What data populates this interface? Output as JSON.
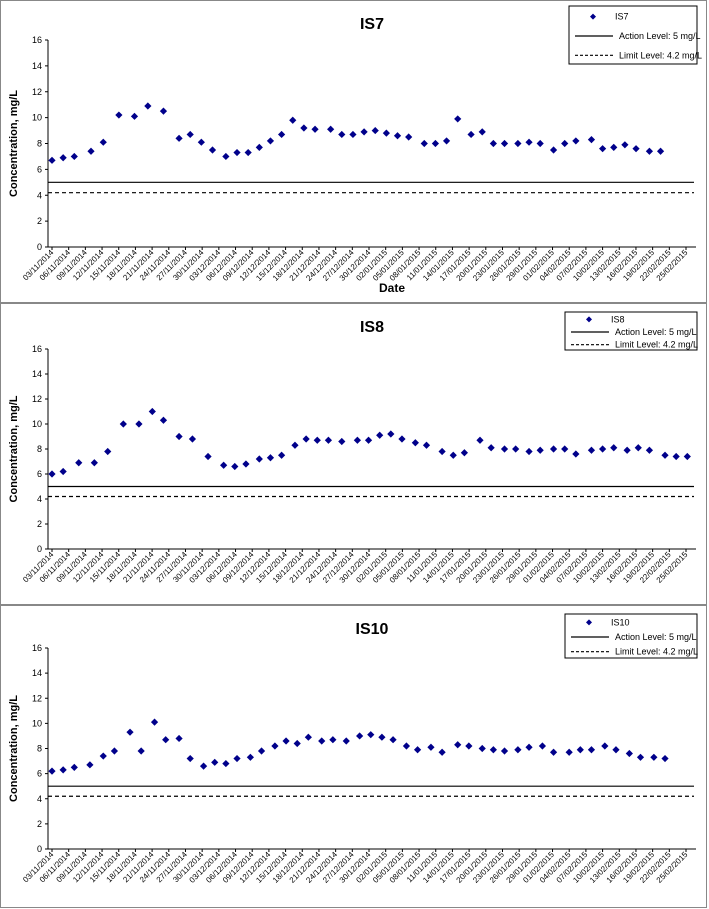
{
  "chart_data": [
    {
      "type": "scatter",
      "title": "IS7",
      "xlabel": "Date",
      "ylabel": "Concentration, mg/L",
      "ylim": [
        0,
        16
      ],
      "yticks": [
        0,
        2,
        4,
        6,
        8,
        10,
        12,
        14,
        16
      ],
      "grid": false,
      "legend_position": "top-right",
      "x_tick_labels": [
        "03/11/2014",
        "06/11/2014",
        "09/11/2014",
        "12/11/2014",
        "15/11/2014",
        "18/11/2014",
        "21/11/2014",
        "24/11/2014",
        "27/11/2014",
        "30/11/2014",
        "03/12/2014",
        "06/12/2014",
        "09/12/2014",
        "12/12/2014",
        "15/12/2014",
        "18/12/2014",
        "21/12/2014",
        "24/12/2014",
        "27/12/2014",
        "30/12/2014",
        "02/01/2015",
        "05/01/2015",
        "08/01/2015",
        "11/01/2015",
        "14/01/2015",
        "17/01/2015",
        "20/01/2015",
        "23/01/2015",
        "26/01/2015",
        "29/01/2015",
        "01/02/2015",
        "04/02/2015",
        "07/02/2015",
        "10/02/2015",
        "13/02/2015",
        "16/02/2015",
        "19/02/2015",
        "22/02/2015",
        "25/02/2015"
      ],
      "series": [
        {
          "name": "IS7",
          "color": "#00008B",
          "x": [
            0,
            1,
            2,
            3.5,
            4.6,
            6,
            7.4,
            8.6,
            10,
            11.4,
            12.4,
            13.4,
            14.4,
            15.6,
            16.6,
            17.6,
            18.6,
            19.6,
            20.6,
            21.6,
            22.6,
            23.6,
            25,
            26,
            27,
            28,
            29,
            30,
            31,
            32,
            33.4,
            34.4,
            35.4,
            36.4,
            37.6,
            38.6,
            39.6,
            40.6,
            41.8,
            42.8,
            43.8,
            45,
            46,
            47,
            48.4,
            49.4,
            50.4,
            51.4,
            52.4,
            53.6,
            54.6,
            55.6,
            56.6
          ],
          "y": [
            6.7,
            6.9,
            7.0,
            7.4,
            8.1,
            10.2,
            10.1,
            10.9,
            10.5,
            8.4,
            8.7,
            8.1,
            7.5,
            7.0,
            7.3,
            7.3,
            7.7,
            8.2,
            8.7,
            9.8,
            9.2,
            9.1,
            9.1,
            8.7,
            8.7,
            8.9,
            9.0,
            8.8,
            8.6,
            8.5,
            8.0,
            8.0,
            8.2,
            9.9,
            8.7,
            8.9,
            8.0,
            8.0,
            8.0,
            8.1,
            8.0,
            7.5,
            8.0,
            8.2,
            8.3,
            7.6,
            7.7,
            7.9,
            7.6,
            7.4,
            7.4,
            null,
            null
          ]
        },
        {
          "name": "Action Level: 5 mg/L",
          "style": "solid",
          "y": 5
        },
        {
          "name": "Limit Level: 4.2 mg/L",
          "style": "dashed",
          "y": 4.2
        }
      ]
    },
    {
      "type": "scatter",
      "title": "IS8",
      "xlabel": "",
      "ylabel": "Concentration, mg/L",
      "ylim": [
        0,
        16
      ],
      "yticks": [
        0,
        2,
        4,
        6,
        8,
        10,
        12,
        14,
        16
      ],
      "grid": false,
      "legend_position": "top-right",
      "x_tick_labels": [
        "03/11/2014",
        "06/11/2014",
        "09/11/2014",
        "12/11/2014",
        "15/11/2014",
        "18/11/2014",
        "21/11/2014",
        "24/11/2014",
        "27/11/2014",
        "30/11/2014",
        "03/12/2014",
        "06/12/2014",
        "09/12/2014",
        "12/12/2014",
        "15/12/2014",
        "18/12/2014",
        "21/12/2014",
        "24/12/2014",
        "27/12/2014",
        "30/12/2014",
        "02/01/2015",
        "05/01/2015",
        "08/01/2015",
        "11/01/2015",
        "14/01/2015",
        "17/01/2015",
        "20/01/2015",
        "23/01/2015",
        "26/01/2015",
        "29/01/2015",
        "01/02/2015",
        "04/02/2015",
        "07/02/2015",
        "10/02/2015",
        "13/02/2015",
        "16/02/2015",
        "19/02/2015",
        "22/02/2015",
        "25/02/2015"
      ],
      "series": [
        {
          "name": "IS8",
          "color": "#00008B",
          "x": [
            0,
            1,
            2.4,
            3.8,
            5,
            6.4,
            7.8,
            9,
            10,
            11.4,
            12.6,
            14,
            15.4,
            16.4,
            17.4,
            18.6,
            19.6,
            20.6,
            21.8,
            22.8,
            23.8,
            24.8,
            26,
            27.4,
            28.4,
            29.4,
            30.4,
            31.4,
            32.6,
            33.6,
            35,
            36,
            37,
            38.4,
            39.4,
            40.6,
            41.6,
            42.8,
            43.8,
            45,
            46,
            47,
            48.4,
            49.4,
            50.4,
            51.6,
            52.6,
            53.6,
            55,
            56,
            57
          ],
          "y": [
            6.0,
            6.2,
            6.9,
            6.9,
            7.8,
            10.0,
            10.0,
            11.0,
            10.3,
            9.0,
            8.8,
            7.4,
            6.7,
            6.6,
            6.8,
            7.2,
            7.3,
            7.5,
            8.3,
            8.8,
            8.7,
            8.7,
            8.6,
            8.7,
            8.7,
            9.1,
            9.2,
            8.8,
            8.5,
            8.3,
            7.8,
            7.5,
            7.7,
            8.7,
            8.1,
            8.0,
            8.0,
            7.8,
            7.9,
            8.0,
            8.0,
            7.6,
            7.9,
            8.0,
            8.1,
            7.9,
            8.1,
            7.9,
            7.5,
            7.4,
            7.4
          ]
        },
        {
          "name": "Action Level: 5 mg/L",
          "style": "solid",
          "y": 5
        },
        {
          "name": "Limit Level: 4.2 mg/L",
          "style": "dashed",
          "y": 4.2
        }
      ]
    },
    {
      "type": "scatter",
      "title": "IS10",
      "xlabel": "",
      "ylabel": "Concentration, mg/L",
      "ylim": [
        0,
        16
      ],
      "yticks": [
        0,
        2,
        4,
        6,
        8,
        10,
        12,
        14,
        16
      ],
      "grid": false,
      "legend_position": "top-right",
      "x_tick_labels": [
        "03/11/2014",
        "06/11/2014",
        "09/11/2014",
        "12/11/2014",
        "15/11/2014",
        "18/11/2014",
        "21/11/2014",
        "24/11/2014",
        "27/11/2014",
        "30/11/2014",
        "03/12/2014",
        "06/12/2014",
        "09/12/2014",
        "12/12/2014",
        "15/12/2014",
        "18/12/2014",
        "21/12/2014",
        "24/12/2014",
        "27/12/2014",
        "30/12/2014",
        "02/01/2015",
        "05/01/2015",
        "08/01/2015",
        "11/01/2015",
        "14/01/2015",
        "17/01/2015",
        "20/01/2015",
        "23/01/2015",
        "26/01/2015",
        "29/01/2015",
        "01/02/2015",
        "04/02/2015",
        "07/02/2015",
        "10/02/2015",
        "13/02/2015",
        "16/02/2015",
        "19/02/2015",
        "22/02/2015",
        "25/02/2015"
      ],
      "series": [
        {
          "name": "IS10",
          "color": "#00008B",
          "x": [
            0,
            1,
            2,
            3.4,
            4.6,
            5.6,
            7,
            8,
            9.2,
            10.2,
            11.4,
            12.4,
            13.6,
            14.6,
            15.6,
            16.6,
            17.8,
            18.8,
            20,
            21,
            22,
            23,
            24.2,
            25.2,
            26.4,
            27.6,
            28.6,
            29.6,
            30.6,
            31.8,
            32.8,
            34,
            35,
            36.4,
            37.4,
            38.6,
            39.6,
            40.6,
            41.8,
            42.8,
            44,
            45,
            46.4,
            47.4,
            48.4,
            49.6,
            50.6,
            51.8,
            52.8,
            54,
            55,
            56,
            57.2
          ],
          "y": [
            6.2,
            6.3,
            6.5,
            6.7,
            7.4,
            7.8,
            9.3,
            7.8,
            10.1,
            8.7,
            8.8,
            7.2,
            6.6,
            6.9,
            6.8,
            7.2,
            7.3,
            7.8,
            8.2,
            8.6,
            8.4,
            8.9,
            8.6,
            8.7,
            8.6,
            9.0,
            9.1,
            8.9,
            8.7,
            8.2,
            7.9,
            8.1,
            7.7,
            8.3,
            8.2,
            8.0,
            7.9,
            7.8,
            7.9,
            8.1,
            8.2,
            7.7,
            7.7,
            7.9,
            7.9,
            8.2,
            7.9,
            7.6,
            7.3,
            7.3,
            7.2,
            null,
            null
          ]
        },
        {
          "name": "Action Level: 5 mg/L",
          "style": "solid",
          "y": 5
        },
        {
          "name": "Limit Level: 4.2 mg/L",
          "style": "dashed",
          "y": 4.2
        }
      ]
    }
  ]
}
